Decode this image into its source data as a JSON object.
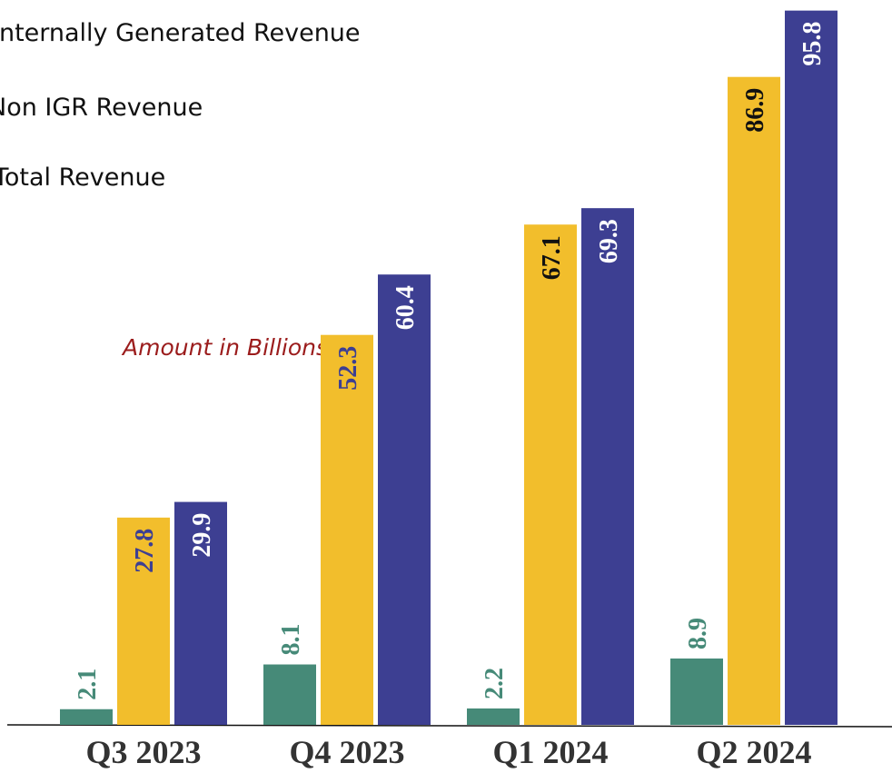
{
  "chart_data": {
    "type": "bar",
    "annotation": "Amount in Billions ‘N",
    "categories": [
      "Q3 2023",
      "Q4 2023",
      "Q1 2024",
      "Q2 2024"
    ],
    "series": [
      {
        "name": "Internally Generated Revenue",
        "color": "#468a78",
        "label_colors": [
          "#468a78",
          "#468a78",
          "#468a78",
          "#468a78"
        ],
        "values": [
          2.1,
          8.1,
          2.2,
          8.9
        ]
      },
      {
        "name": "Non IGR Revenue",
        "color": "#f2be2c",
        "label_colors": [
          "#3d3f92",
          "#3d3f92",
          "#111111",
          "#111111"
        ],
        "values": [
          27.8,
          52.3,
          67.1,
          86.9
        ]
      },
      {
        "name": "Total Revenue",
        "color": "#3d3f92",
        "label_colors": [
          "#ffffff",
          "#ffffff",
          "#ffffff",
          "#ffffff"
        ],
        "values": [
          29.9,
          60.4,
          69.3,
          95.8
        ]
      }
    ],
    "ylim": [
      0,
      96
    ]
  }
}
